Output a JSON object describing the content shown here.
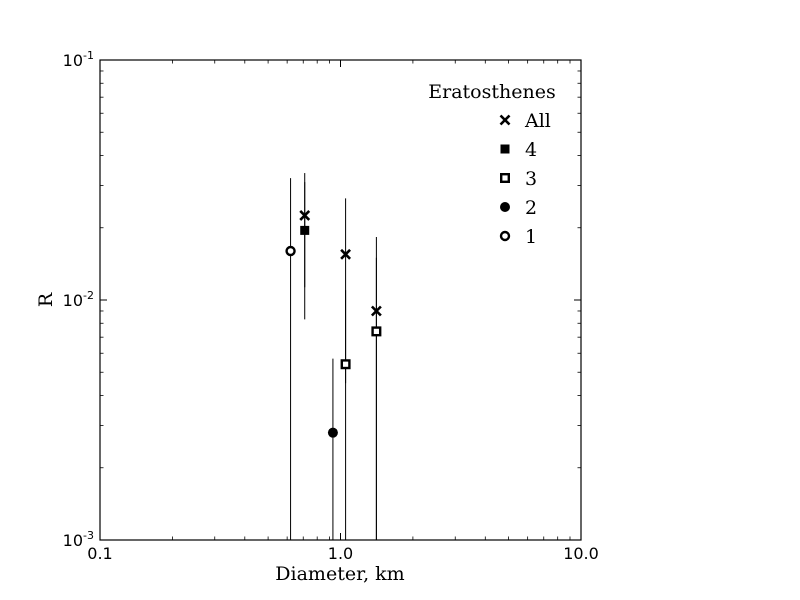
{
  "chart_data": {
    "type": "scatter",
    "title": "",
    "xlabel": "Diameter, km",
    "ylabel": "R",
    "xscale": "log",
    "yscale": "log",
    "xlim": [
      0.1,
      10.0
    ],
    "ylim": [
      0.001,
      0.1
    ],
    "x_ticks": [
      {
        "value": 0.1,
        "label": "0.1"
      },
      {
        "value": 1.0,
        "label": "1.0"
      },
      {
        "value": 10.0,
        "label": "10.0"
      }
    ],
    "y_ticks": [
      {
        "value": 0.001,
        "base": "10",
        "exp": "-3"
      },
      {
        "value": 0.01,
        "base": "10",
        "exp": "-2"
      },
      {
        "value": 0.1,
        "base": "10",
        "exp": "-1"
      }
    ],
    "grid": false,
    "legend": {
      "title": "Eratosthenes",
      "position": "top-right"
    },
    "series": [
      {
        "name": "All",
        "marker": "x",
        "points": [
          {
            "x": 0.71,
            "y": 0.0225,
            "ylow": 0.0113,
            "yhigh": 0.0338
          },
          {
            "x": 1.05,
            "y": 0.0155,
            "ylow": 0.0045,
            "yhigh": 0.0265
          },
          {
            "x": 1.41,
            "y": 0.009,
            "ylow": 0.001,
            "yhigh": 0.0183
          }
        ]
      },
      {
        "name": "4",
        "marker": "filled-square",
        "points": [
          {
            "x": 0.71,
            "y": 0.0195,
            "ylow": 0.0083,
            "yhigh": 0.031
          }
        ]
      },
      {
        "name": "3",
        "marker": "open-square",
        "points": [
          {
            "x": 1.05,
            "y": 0.0054,
            "ylow": 0.001,
            "yhigh": 0.011
          },
          {
            "x": 1.41,
            "y": 0.0074,
            "ylow": 0.001,
            "yhigh": 0.015
          }
        ]
      },
      {
        "name": "2",
        "marker": "filled-circle",
        "points": [
          {
            "x": 0.93,
            "y": 0.0028,
            "ylow": 0.001,
            "yhigh": 0.0057
          }
        ]
      },
      {
        "name": "1",
        "marker": "open-circle",
        "points": [
          {
            "x": 0.62,
            "y": 0.016,
            "ylow": 0.001,
            "yhigh": 0.0322
          }
        ]
      }
    ]
  }
}
